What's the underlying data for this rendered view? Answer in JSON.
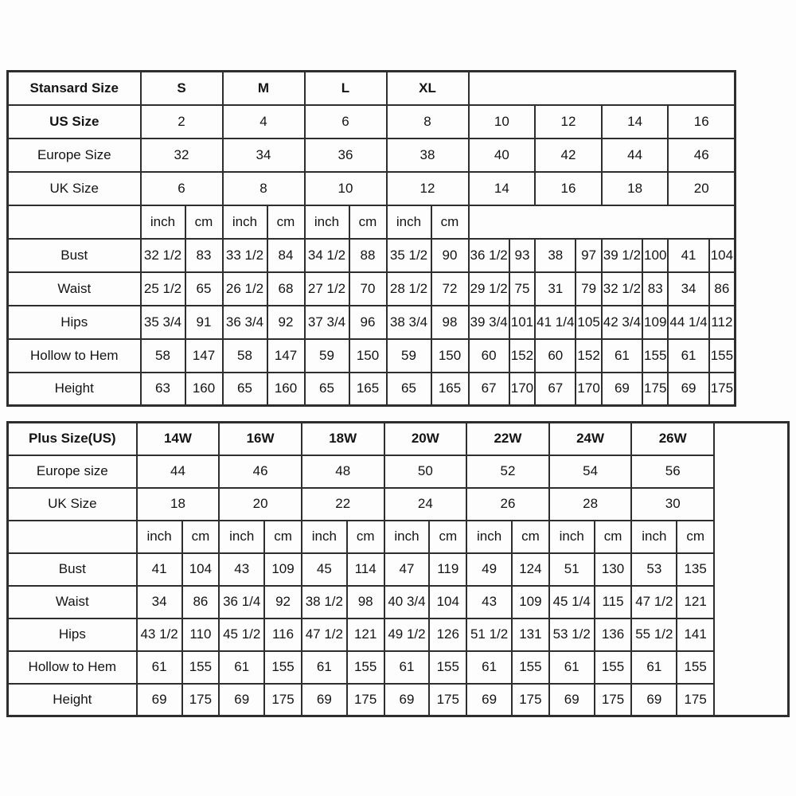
{
  "colors": {
    "border": "#2e2e2e",
    "text": "#141414",
    "background": "#fdfdfd"
  },
  "standard_table": {
    "title": "Stansard Size",
    "size_groups": [
      "S",
      "M",
      "L",
      "XL"
    ],
    "units": {
      "inch": "inch",
      "cm": "cm"
    },
    "rows_header": [
      {
        "label": "US Size",
        "values": [
          "2",
          "4",
          "6",
          "8",
          "10",
          "12",
          "14",
          "16"
        ]
      },
      {
        "label": "Europe Size",
        "values": [
          "32",
          "34",
          "36",
          "38",
          "40",
          "42",
          "44",
          "46"
        ]
      },
      {
        "label": "UK Size",
        "values": [
          "6",
          "8",
          "10",
          "12",
          "14",
          "16",
          "18",
          "20"
        ]
      }
    ],
    "measure_rows": [
      {
        "label": "Bust",
        "values": [
          "32 1/2",
          "83",
          "33 1/2",
          "84",
          "34 1/2",
          "88",
          "35 1/2",
          "90",
          "36 1/2",
          "93",
          "38",
          "97",
          "39 1/2",
          "100",
          "41",
          "104"
        ]
      },
      {
        "label": "Waist",
        "values": [
          "25 1/2",
          "65",
          "26 1/2",
          "68",
          "27 1/2",
          "70",
          "28 1/2",
          "72",
          "29 1/2",
          "75",
          "31",
          "79",
          "32 1/2",
          "83",
          "34",
          "86"
        ]
      },
      {
        "label": "Hips",
        "values": [
          "35 3/4",
          "91",
          "36 3/4",
          "92",
          "37 3/4",
          "96",
          "38 3/4",
          "98",
          "39 3/4",
          "101",
          "41 1/4",
          "105",
          "42 3/4",
          "109",
          "44 1/4",
          "112"
        ]
      },
      {
        "label": "Hollow to Hem",
        "values": [
          "58",
          "147",
          "58",
          "147",
          "59",
          "150",
          "59",
          "150",
          "60",
          "152",
          "60",
          "152",
          "61",
          "155",
          "61",
          "155"
        ]
      },
      {
        "label": "Height",
        "values": [
          "63",
          "160",
          "65",
          "160",
          "65",
          "165",
          "65",
          "165",
          "67",
          "170",
          "67",
          "170",
          "69",
          "175",
          "69",
          "175"
        ]
      }
    ]
  },
  "plus_table": {
    "title": "Plus Size(US)",
    "size_groups": [
      "14W",
      "16W",
      "18W",
      "20W",
      "22W",
      "24W",
      "26W"
    ],
    "units": {
      "inch": "inch",
      "cm": "cm"
    },
    "rows_header": [
      {
        "label": "Europe size",
        "values": [
          "44",
          "46",
          "48",
          "50",
          "52",
          "54",
          "56"
        ]
      },
      {
        "label": "UK Size",
        "values": [
          "18",
          "20",
          "22",
          "24",
          "26",
          "28",
          "30"
        ]
      }
    ],
    "measure_rows": [
      {
        "label": "Bust",
        "values": [
          "41",
          "104",
          "43",
          "109",
          "45",
          "114",
          "47",
          "119",
          "49",
          "124",
          "51",
          "130",
          "53",
          "135"
        ]
      },
      {
        "label": "Waist",
        "values": [
          "34",
          "86",
          "36 1/4",
          "92",
          "38 1/2",
          "98",
          "40 3/4",
          "104",
          "43",
          "109",
          "45 1/4",
          "115",
          "47 1/2",
          "121"
        ]
      },
      {
        "label": "Hips",
        "values": [
          "43 1/2",
          "110",
          "45 1/2",
          "116",
          "47 1/2",
          "121",
          "49 1/2",
          "126",
          "51 1/2",
          "131",
          "53 1/2",
          "136",
          "55 1/2",
          "141"
        ]
      },
      {
        "label": "Hollow to Hem",
        "values": [
          "61",
          "155",
          "61",
          "155",
          "61",
          "155",
          "61",
          "155",
          "61",
          "155",
          "61",
          "155",
          "61",
          "155"
        ]
      },
      {
        "label": "Height",
        "values": [
          "69",
          "175",
          "69",
          "175",
          "69",
          "175",
          "69",
          "175",
          "69",
          "175",
          "69",
          "175",
          "69",
          "175"
        ]
      }
    ]
  }
}
